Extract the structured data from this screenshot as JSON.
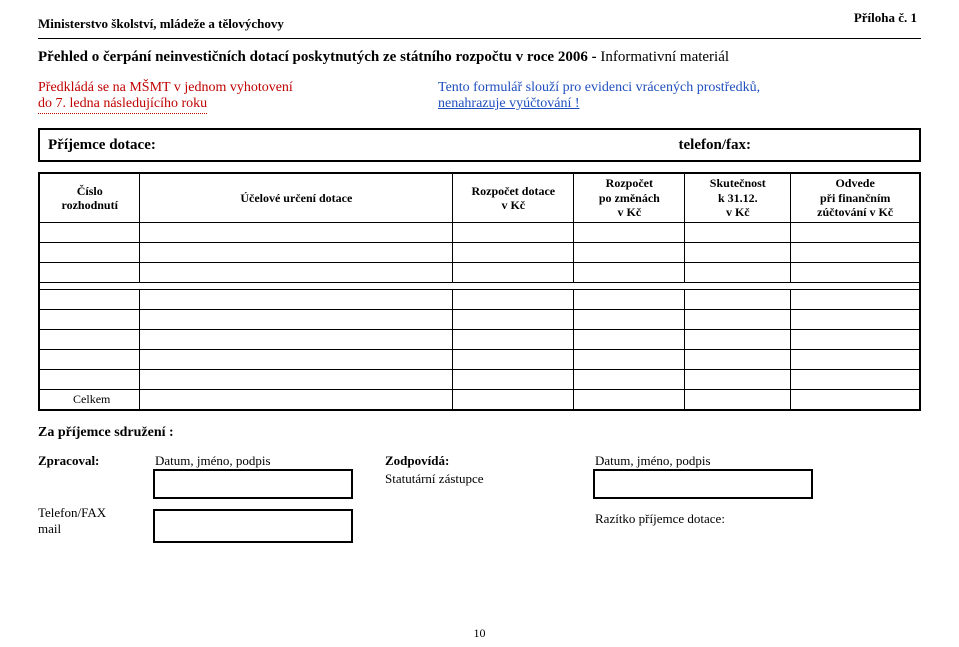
{
  "header": {
    "attachment": "Příloha č. 1",
    "ministry": "Ministerstvo školství, mládeže a tělovýchovy",
    "title_main": "Přehled o čerpání neinvestičních dotací poskytnutých ze státního rozpočtu v roce 2006  -  ",
    "title_suffix": "Informativní materiál"
  },
  "note_left": {
    "line1": "Předkládá se na MŠMT v jednom vyhotovení",
    "line2": "do 7. ledna následujícího roku"
  },
  "note_right": {
    "line1": "Tento formulář slouží pro evidenci vrácených prostředků,",
    "line2": "nenahrazuje vyúčtování !"
  },
  "recipient": {
    "label": "Příjemce dotace:",
    "phone_label": "telefon/fax:"
  },
  "table": {
    "columns": [
      "Číslo\nrozhodnutí",
      "Účelové určení dotace",
      "Rozpočet dotace\nv  Kč",
      "Rozpočet\npo změnách\nv  Kč",
      "Skutečnost\nk 31.12.\nv Kč",
      "Odvede\npři finančním\nzúčtování v Kč"
    ],
    "body_rows": 8,
    "total_label": "Celkem"
  },
  "signatures": {
    "heading": "Za příjemce sdružení  :",
    "zpracoval_label": "Zpracoval:",
    "datum_caption": "Datum, jméno, podpis",
    "zodpovida_label": "Zodpovídá:",
    "zodpovida_sub": "Statutární zástupce",
    "telfax_label": "Telefon/FAX",
    "mail_label": "mail",
    "stamp_caption": "Razítko příjemce dotace:"
  },
  "page_number": "10",
  "colors": {
    "red": "#c00000",
    "blue": "#1f4fbf",
    "black": "#000000",
    "bg": "#ffffff"
  }
}
